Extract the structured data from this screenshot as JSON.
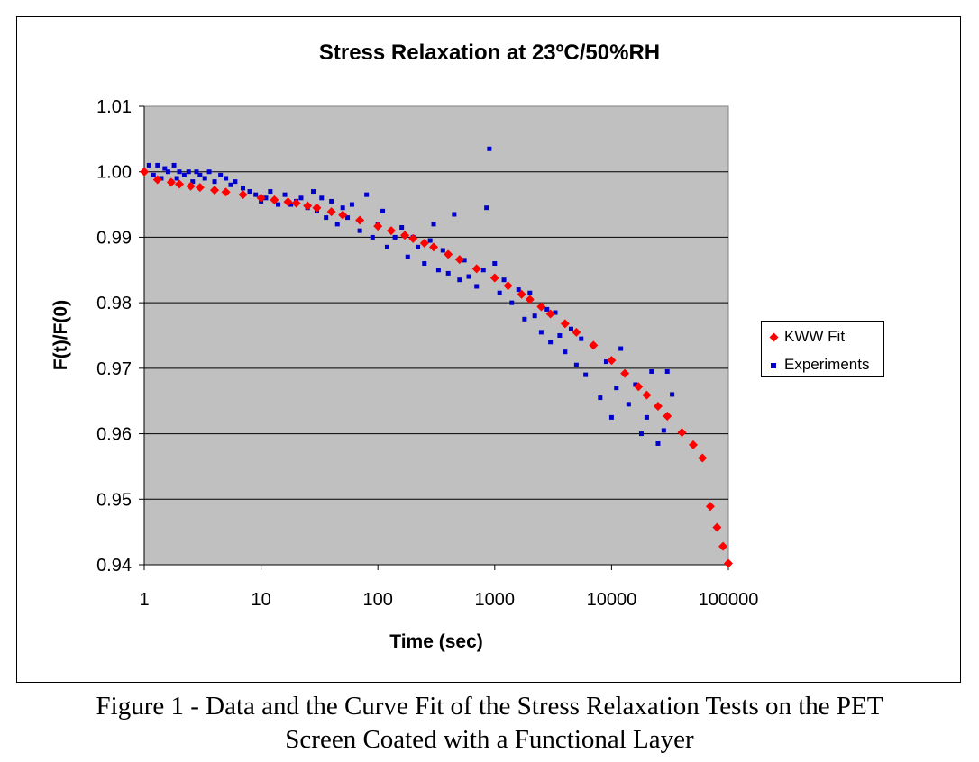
{
  "chart_data": {
    "type": "scatter",
    "title": "Stress Relaxation at 23ºC/50%RH",
    "xlabel": "Time (sec)",
    "ylabel": "F(t)/F(0)",
    "x_scale": "log",
    "xlim": [
      1,
      100000
    ],
    "ylim": [
      0.94,
      1.01
    ],
    "x_ticks": [
      "1",
      "10",
      "100",
      "1000",
      "10000",
      "100000"
    ],
    "y_ticks": [
      "0.94",
      "0.95",
      "0.96",
      "0.97",
      "0.98",
      "0.99",
      "1.00",
      "1.01"
    ],
    "grid": "horizontal",
    "plot_background": "#c0c0c0",
    "legend_position": "right",
    "series": [
      {
        "name": "KWW Fit",
        "marker": "diamond",
        "color": "#ff0000",
        "x": [
          1,
          1.3,
          1.7,
          2,
          2.5,
          3,
          4,
          5,
          7,
          10,
          13,
          17,
          20,
          25,
          30,
          40,
          50,
          70,
          100,
          130,
          170,
          200,
          250,
          300,
          400,
          500,
          700,
          1000,
          1300,
          1700,
          2000,
          2500,
          3000,
          4000,
          5000,
          7000,
          10000,
          13000,
          17000,
          20000,
          25000,
          30000,
          40000,
          50000,
          60000,
          70000,
          80000,
          90000,
          100000
        ],
        "y": [
          1.0,
          0.9988,
          0.9984,
          0.9981,
          0.9978,
          0.9976,
          0.9972,
          0.9969,
          0.9965,
          0.996,
          0.9957,
          0.9954,
          0.9952,
          0.9948,
          0.9945,
          0.9939,
          0.9934,
          0.9926,
          0.9917,
          0.991,
          0.9903,
          0.9898,
          0.9891,
          0.9885,
          0.9874,
          0.9866,
          0.9852,
          0.9838,
          0.9826,
          0.9813,
          0.9805,
          0.9794,
          0.9783,
          0.9768,
          0.9755,
          0.9735,
          0.9712,
          0.9692,
          0.9672,
          0.9659,
          0.9642,
          0.9627,
          0.9602,
          0.9583,
          0.9563,
          0.9489,
          0.9457,
          0.9428,
          0.9402
        ]
      },
      {
        "name": "Experiments",
        "marker": "square",
        "color": "#0000cc",
        "x": [
          1,
          1.1,
          1.2,
          1.3,
          1.4,
          1.5,
          1.6,
          1.7,
          1.8,
          1.9,
          2,
          2.2,
          2.4,
          2.6,
          2.8,
          3,
          3.3,
          3.6,
          4,
          4.5,
          5,
          5.5,
          6,
          7,
          8,
          9,
          10,
          11,
          12,
          14,
          16,
          18,
          20,
          22,
          25,
          28,
          30,
          33,
          36,
          40,
          45,
          50,
          55,
          60,
          70,
          80,
          90,
          100,
          110,
          120,
          140,
          160,
          180,
          200,
          220,
          250,
          280,
          300,
          330,
          360,
          400,
          450,
          500,
          550,
          600,
          700,
          800,
          850,
          900,
          1000,
          1100,
          1200,
          1400,
          1600,
          1800,
          2000,
          2200,
          2500,
          2800,
          3000,
          3300,
          3600,
          4000,
          4500,
          5000,
          5500,
          6000,
          7000,
          8000,
          9000,
          10000,
          11000,
          12000,
          14000,
          16000,
          18000,
          20000,
          22000,
          25000,
          28000,
          30000,
          33000
        ],
        "y": [
          1.0,
          1.001,
          0.9995,
          1.001,
          0.999,
          1.0005,
          1.0,
          0.9985,
          1.001,
          0.999,
          1.0,
          0.9995,
          1.0,
          0.9985,
          1.0,
          0.9995,
          0.999,
          1.0,
          0.9985,
          0.9995,
          0.999,
          0.998,
          0.9985,
          0.9975,
          0.997,
          0.9965,
          0.9955,
          0.996,
          0.997,
          0.995,
          0.9965,
          0.995,
          0.9955,
          0.996,
          0.9945,
          0.997,
          0.994,
          0.996,
          0.993,
          0.9955,
          0.992,
          0.9945,
          0.993,
          0.995,
          0.991,
          0.9965,
          0.99,
          0.992,
          0.994,
          0.9885,
          0.99,
          0.9915,
          0.987,
          0.99,
          0.9885,
          0.986,
          0.9895,
          0.992,
          0.985,
          0.988,
          0.9845,
          0.9935,
          0.9835,
          0.9865,
          0.984,
          0.9825,
          0.985,
          0.9945,
          1.0035,
          0.986,
          0.9815,
          0.9835,
          0.98,
          0.982,
          0.9775,
          0.9815,
          0.978,
          0.9755,
          0.979,
          0.974,
          0.9785,
          0.975,
          0.9725,
          0.976,
          0.9705,
          0.9745,
          0.969,
          0.9735,
          0.9655,
          0.971,
          0.9625,
          0.967,
          0.973,
          0.9645,
          0.9675,
          0.96,
          0.9625,
          0.9695,
          0.9585,
          0.9605,
          0.9695,
          0.966
        ]
      }
    ]
  },
  "caption": {
    "line1": "Figure 1 - Data and the Curve Fit of the Stress Relaxation Tests on the PET",
    "line2": "Screen Coated with a Functional Layer"
  }
}
